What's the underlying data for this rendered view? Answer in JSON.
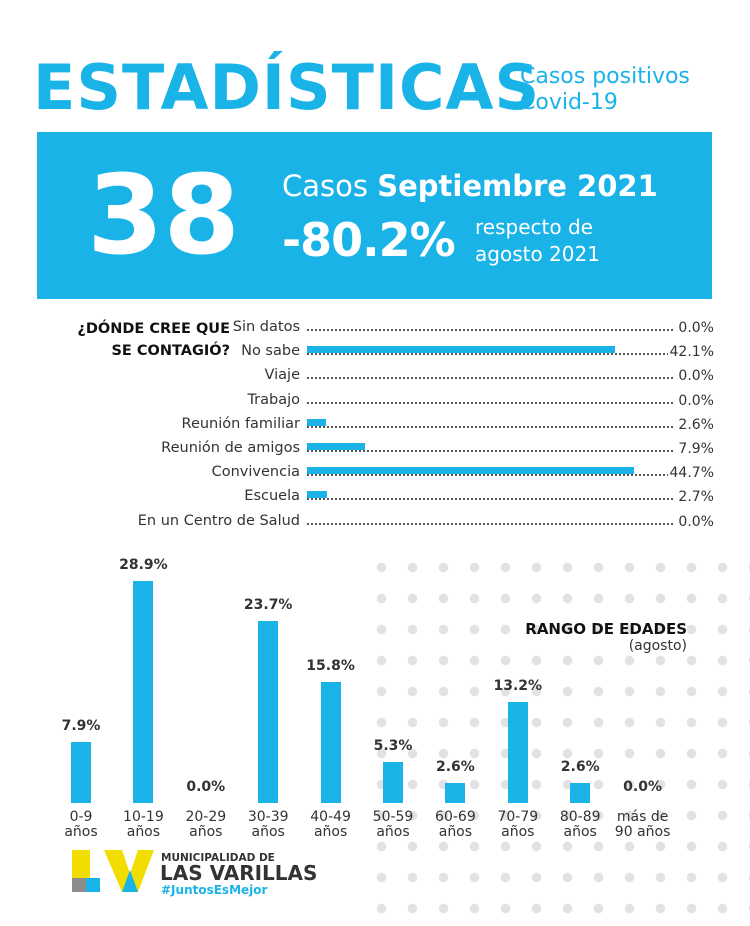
{
  "header": {
    "title": "ESTADÍSTICAS",
    "subtitle_line1": "Casos positivos",
    "subtitle_line2": "Covid-19"
  },
  "banner": {
    "count": "38",
    "casos_word": "Casos",
    "period": "Septiembre 2021",
    "change": "-80.2%",
    "compare_line1": "respecto de",
    "compare_line2": "agosto 2021"
  },
  "colors": {
    "accent": "#1ab3e8",
    "text": "#333333",
    "logo_yellow": "#f2dd00",
    "logo_gray": "#8c8c8c"
  },
  "chart_data": [
    {
      "type": "bar",
      "orientation": "horizontal",
      "title": "¿DÓNDE CREE QUE\nSE CONTAGIÓ?",
      "categories": [
        "Sin datos",
        "No sabe",
        "Viaje",
        "Trabajo",
        "Reunión familiar",
        "Reunión de amigos",
        "Convivencia",
        "Escuela",
        "En un Centro de Salud"
      ],
      "values": [
        0.0,
        42.1,
        0.0,
        0.0,
        2.6,
        7.9,
        44.7,
        2.7,
        0.0
      ],
      "labels": [
        "0.0%",
        "42.1%",
        "0.0%",
        "0.0%",
        "2.6%",
        "7.9%",
        "44.7%",
        "2.7%",
        "0.0%"
      ],
      "unit": "%"
    },
    {
      "type": "bar",
      "orientation": "vertical",
      "title": "RANGO DE EDADES",
      "subtitle": "(agosto)",
      "categories": [
        [
          "0-9",
          "años"
        ],
        [
          "10-19",
          "años"
        ],
        [
          "20-29",
          "años"
        ],
        [
          "30-39",
          "años"
        ],
        [
          "40-49",
          "años"
        ],
        [
          "50-59",
          "años"
        ],
        [
          "60-69",
          "años"
        ],
        [
          "70-79",
          "años"
        ],
        [
          "80-89",
          "años"
        ],
        [
          "más de",
          "90 años"
        ]
      ],
      "values": [
        7.9,
        28.9,
        0.0,
        23.7,
        15.8,
        5.3,
        2.6,
        13.2,
        2.6,
        0.0
      ],
      "labels": [
        "7.9%",
        "28.9%",
        "0.0%",
        "23.7%",
        "15.8%",
        "5.3%",
        "2.6%",
        "13.2%",
        "2.6%",
        "0.0%"
      ],
      "unit": "%"
    }
  ],
  "footer": {
    "municipality": "MUNICIPALIDAD DE",
    "city": "LAS VARILLAS",
    "hashtag": "#JuntosEsMejor"
  }
}
